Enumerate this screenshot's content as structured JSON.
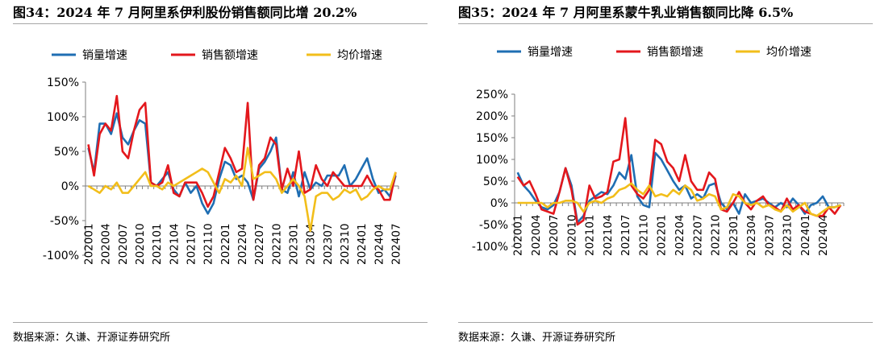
{
  "colors": {
    "volume": "#1f6eb3",
    "sales": "#e3171c",
    "price": "#f2be1a",
    "axis": "#7f7f7f"
  },
  "charts": [
    {
      "title": "图34：2024 年 7 月阿里系伊利股份销售额同比增 20.2%",
      "source": "数据来源：久谦、开源证券研究所",
      "chart_data": {
        "type": "line",
        "x": [
          "202001",
          "202002",
          "202003",
          "202004",
          "202005",
          "202006",
          "202007",
          "202008",
          "202009",
          "202010",
          "202011",
          "202012",
          "202101",
          "202102",
          "202103",
          "202104",
          "202105",
          "202106",
          "202107",
          "202108",
          "202109",
          "202110",
          "202111",
          "202112",
          "202201",
          "202202",
          "202203",
          "202204",
          "202205",
          "202206",
          "202207",
          "202208",
          "202209",
          "202210",
          "202211",
          "202212",
          "202301",
          "202302",
          "202303",
          "202304",
          "202305",
          "202306",
          "202307",
          "202308",
          "202309",
          "202310",
          "202311",
          "202312",
          "202401",
          "202402",
          "202403",
          "202404",
          "202405",
          "202406",
          "202407"
        ],
        "tick_labels": [
          "202001",
          "202004",
          "202007",
          "202010",
          "202101",
          "202104",
          "202107",
          "202110",
          "202201",
          "202204",
          "202207",
          "202210",
          "202301",
          "202304",
          "202307",
          "202310",
          "202401",
          "202404",
          "202407"
        ],
        "tick_positions": [
          0,
          3,
          6,
          9,
          12,
          15,
          18,
          21,
          24,
          27,
          30,
          33,
          36,
          39,
          42,
          45,
          48,
          51,
          54
        ],
        "y_ticks": [
          -100,
          -50,
          0,
          50,
          100,
          150
        ],
        "y_tick_labels": [
          "-100%",
          "-50%",
          "0%",
          "50%",
          "100%",
          "150%"
        ],
        "ylim": [
          -100,
          150
        ],
        "legend_position": "top",
        "series": [
          {
            "name": "销量增速",
            "color_key": "volume",
            "values": [
              55,
              20,
              90,
              90,
              75,
              105,
              70,
              60,
              80,
              95,
              90,
              5,
              0,
              10,
              20,
              -5,
              -15,
              5,
              -10,
              0,
              -25,
              -40,
              -25,
              10,
              35,
              30,
              10,
              15,
              5,
              -20,
              25,
              35,
              50,
              70,
              -5,
              -10,
              20,
              -15,
              20,
              -5,
              5,
              0,
              15,
              15,
              15,
              30,
              0,
              10,
              25,
              40,
              10,
              -10,
              -5,
              -15,
              15
            ]
          },
          {
            "name": "销售额增速",
            "color_key": "sales",
            "values": [
              60,
              15,
              75,
              90,
              80,
              130,
              50,
              40,
              80,
              110,
              120,
              5,
              0,
              5,
              30,
              -10,
              -15,
              5,
              5,
              5,
              -10,
              -30,
              -15,
              20,
              55,
              40,
              20,
              25,
              120,
              -20,
              30,
              40,
              70,
              60,
              -5,
              25,
              0,
              50,
              -10,
              -5,
              30,
              10,
              0,
              20,
              10,
              0,
              0,
              0,
              0,
              15,
              0,
              -5,
              -20,
              -20,
              20
            ]
          },
          {
            "name": "均价增速",
            "color_key": "price",
            "values": [
              0,
              -5,
              -10,
              0,
              -5,
              5,
              -10,
              -10,
              0,
              10,
              20,
              0,
              0,
              -5,
              5,
              0,
              5,
              10,
              15,
              20,
              25,
              20,
              5,
              -10,
              10,
              5,
              15,
              0,
              55,
              10,
              15,
              20,
              20,
              10,
              -10,
              0,
              10,
              0,
              -15,
              -65,
              -15,
              -10,
              -10,
              -20,
              -15,
              -5,
              -10,
              -5,
              -20,
              -15,
              -5,
              0,
              -5,
              -5,
              20
            ]
          }
        ]
      }
    },
    {
      "title": "图35：2024 年 7 月阿里系蒙牛乳业销售额同比降 6.5%",
      "source": "数据来源：久谦、开源证券研究所",
      "chart_data": {
        "type": "line",
        "x": [
          "202001",
          "202002",
          "202003",
          "202004",
          "202005",
          "202006",
          "202007",
          "202008",
          "202009",
          "202010",
          "202011",
          "202012",
          "202101",
          "202102",
          "202103",
          "202104",
          "202105",
          "202106",
          "202107",
          "202108",
          "202109",
          "202110",
          "202111",
          "202112",
          "202201",
          "202202",
          "202203",
          "202204",
          "202205",
          "202206",
          "202207",
          "202208",
          "202209",
          "202210",
          "202211",
          "202212",
          "202301",
          "202302",
          "202303",
          "202304",
          "202305",
          "202306",
          "202307",
          "202308",
          "202309",
          "202310",
          "202311",
          "202312",
          "202401",
          "202402",
          "202403",
          "202404",
          "202405",
          "202406",
          "202407"
        ],
        "tick_labels": [
          "202001",
          "202004",
          "202007",
          "202010",
          "202101",
          "202104",
          "202107",
          "202110",
          "202201",
          "202204",
          "202207",
          "202210",
          "202301",
          "202304",
          "202307",
          "202310",
          "202401",
          "202404"
        ],
        "tick_positions": [
          0,
          3,
          6,
          9,
          12,
          15,
          18,
          21,
          24,
          27,
          30,
          33,
          36,
          39,
          42,
          45,
          48,
          51
        ],
        "y_ticks": [
          -100,
          -50,
          0,
          50,
          100,
          150,
          200,
          250
        ],
        "y_tick_labels": [
          "-100%",
          "-50%",
          "0%",
          "50%",
          "100%",
          "150%",
          "200%",
          "250%"
        ],
        "ylim": [
          -100,
          250
        ],
        "legend_position": "top",
        "series": [
          {
            "name": "销量增速",
            "color_key": "volume",
            "values": [
              70,
              40,
              25,
              5,
              -10,
              -15,
              -5,
              25,
              80,
              40,
              -45,
              -30,
              5,
              15,
              25,
              20,
              40,
              70,
              55,
              110,
              15,
              -5,
              -10,
              115,
              100,
              75,
              50,
              30,
              40,
              10,
              20,
              10,
              40,
              45,
              0,
              -15,
              0,
              -25,
              20,
              0,
              5,
              10,
              0,
              -10,
              0,
              -10,
              10,
              -5,
              -25,
              -5,
              0,
              15,
              -10,
              -10,
              -5
            ]
          },
          {
            "name": "销售额增速",
            "color_key": "sales",
            "values": [
              60,
              40,
              50,
              20,
              -15,
              -20,
              -25,
              25,
              80,
              30,
              -50,
              -40,
              40,
              10,
              15,
              25,
              95,
              100,
              195,
              40,
              20,
              10,
              30,
              145,
              135,
              95,
              80,
              50,
              110,
              50,
              30,
              30,
              70,
              55,
              -15,
              -20,
              0,
              25,
              0,
              -15,
              5,
              15,
              -5,
              -10,
              -20,
              10,
              -15,
              -5,
              -20,
              -25,
              -30,
              -30,
              -10,
              -25,
              -5
            ]
          },
          {
            "name": "均价增速",
            "color_key": "price",
            "values": [
              0,
              0,
              0,
              0,
              0,
              -10,
              0,
              0,
              5,
              5,
              0,
              -20,
              0,
              5,
              0,
              10,
              15,
              30,
              35,
              45,
              30,
              20,
              40,
              15,
              20,
              15,
              30,
              20,
              40,
              30,
              5,
              10,
              20,
              15,
              -15,
              -10,
              20,
              15,
              0,
              -5,
              0,
              -10,
              -5,
              -15,
              -20,
              -5,
              -20,
              -10,
              0,
              -25,
              -30,
              -20,
              -10,
              -10,
              -5
            ]
          }
        ]
      }
    }
  ]
}
